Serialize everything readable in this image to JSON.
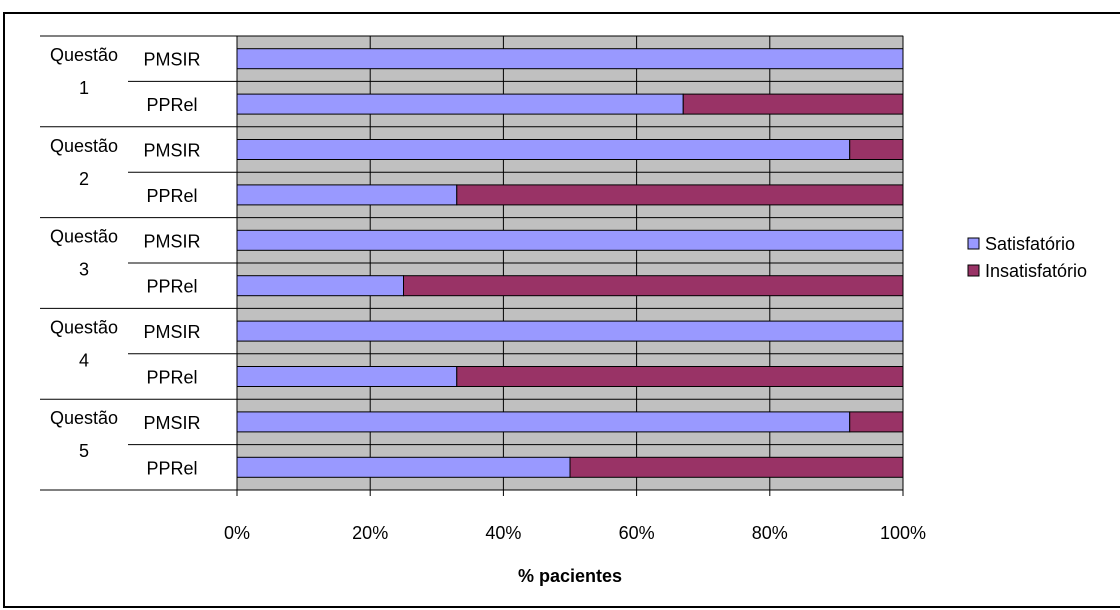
{
  "chart_data": {
    "type": "bar",
    "orientation": "horizontal",
    "stacked": "percent",
    "groups": [
      {
        "label": "Questão",
        "number": "1",
        "items": [
          {
            "label": "PMSIR",
            "values": [
              100,
              0
            ]
          },
          {
            "label": "PPRel",
            "values": [
              67,
              33
            ]
          }
        ]
      },
      {
        "label": "Questão",
        "number": "2",
        "items": [
          {
            "label": "PMSIR",
            "values": [
              92,
              8
            ]
          },
          {
            "label": "PPRel",
            "values": [
              33,
              67
            ]
          }
        ]
      },
      {
        "label": "Questão",
        "number": "3",
        "items": [
          {
            "label": "PMSIR",
            "values": [
              100,
              0
            ]
          },
          {
            "label": "PPRel",
            "values": [
              25,
              75
            ]
          }
        ]
      },
      {
        "label": "Questão",
        "number": "4",
        "items": [
          {
            "label": "PMSIR",
            "values": [
              100,
              0
            ]
          },
          {
            "label": "PPRel",
            "values": [
              33,
              67
            ]
          }
        ]
      },
      {
        "label": "Questão",
        "number": "5",
        "items": [
          {
            "label": "PMSIR",
            "values": [
              92,
              8
            ]
          },
          {
            "label": "PPRel",
            "values": [
              50,
              50
            ]
          }
        ]
      }
    ],
    "series": [
      {
        "name": "Satisfatório",
        "color": "#9999FF"
      },
      {
        "name": "Insatisfatório",
        "color": "#993366"
      }
    ],
    "xlabel": "% pacientes",
    "xlim": [
      0,
      100
    ],
    "xticks": [
      "0%",
      "20%",
      "40%",
      "60%",
      "80%",
      "100%"
    ],
    "plot_background": "#C0C0C0",
    "grid": true,
    "legend_position": "right"
  }
}
